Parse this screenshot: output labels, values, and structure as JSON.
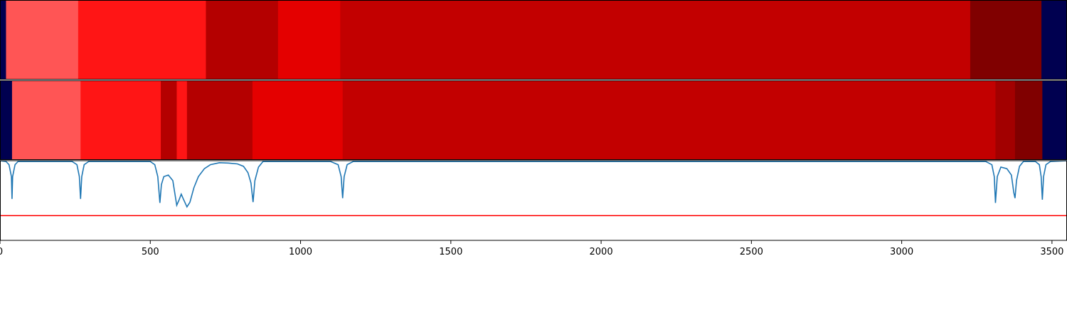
{
  "chart_data": {
    "type": "heatmap",
    "title": "",
    "xlabel": "",
    "ylabel": "",
    "xlim": [
      0,
      3550
    ],
    "x_ticks": [
      0,
      500,
      1000,
      1500,
      2000,
      2500,
      3000,
      3500
    ],
    "x_tick_labels": [
      "0",
      "500",
      "1000",
      "1500",
      "2000",
      "2500",
      "3000",
      "3500"
    ],
    "colors": {
      "background_band": "#000050",
      "level_1": "#ff5555",
      "level_2": "#ff1515",
      "level_3": "#e40000",
      "level_4": "#c20000",
      "level_5": "#b40000",
      "level_6": "#a20000",
      "level_7": "#800000",
      "line": "#1f77b4",
      "threshold": "#ff0000"
    },
    "tracks": [
      {
        "segments": [
          {
            "start": 0,
            "end": 20,
            "color": "background_band"
          },
          {
            "start": 20,
            "end": 260,
            "color": "level_1"
          },
          {
            "start": 260,
            "end": 685,
            "color": "level_2"
          },
          {
            "start": 685,
            "end": 925,
            "color": "level_5"
          },
          {
            "start": 925,
            "end": 1132,
            "color": "level_3"
          },
          {
            "start": 1132,
            "end": 3228,
            "color": "level_4"
          },
          {
            "start": 3228,
            "end": 3465,
            "color": "level_7"
          },
          {
            "start": 3465,
            "end": 3550,
            "color": "background_band"
          }
        ]
      },
      {
        "segments": [
          {
            "start": 0,
            "end": 40,
            "color": "background_band"
          },
          {
            "start": 40,
            "end": 268,
            "color": "level_1"
          },
          {
            "start": 268,
            "end": 535,
            "color": "level_2"
          },
          {
            "start": 535,
            "end": 588,
            "color": "level_5"
          },
          {
            "start": 588,
            "end": 622,
            "color": "level_2"
          },
          {
            "start": 622,
            "end": 840,
            "color": "level_5"
          },
          {
            "start": 840,
            "end": 1140,
            "color": "level_3"
          },
          {
            "start": 1140,
            "end": 3312,
            "color": "level_4"
          },
          {
            "start": 3312,
            "end": 3377,
            "color": "level_6"
          },
          {
            "start": 3377,
            "end": 3468,
            "color": "level_7"
          },
          {
            "start": 3468,
            "end": 3550,
            "color": "background_band"
          }
        ]
      }
    ],
    "line_series": {
      "ylim": [
        0,
        1
      ],
      "points": [
        [
          0,
          1.0
        ],
        [
          20,
          0.99
        ],
        [
          30,
          0.95
        ],
        [
          38,
          0.8
        ],
        [
          40,
          0.52
        ],
        [
          42,
          0.8
        ],
        [
          50,
          0.95
        ],
        [
          60,
          0.99
        ],
        [
          240,
          0.99
        ],
        [
          256,
          0.95
        ],
        [
          264,
          0.8
        ],
        [
          268,
          0.52
        ],
        [
          272,
          0.8
        ],
        [
          280,
          0.95
        ],
        [
          295,
          0.99
        ],
        [
          500,
          0.99
        ],
        [
          515,
          0.95
        ],
        [
          525,
          0.8
        ],
        [
          532,
          0.47
        ],
        [
          537,
          0.7
        ],
        [
          545,
          0.8
        ],
        [
          560,
          0.82
        ],
        [
          575,
          0.75
        ],
        [
          588,
          0.44
        ],
        [
          595,
          0.5
        ],
        [
          603,
          0.58
        ],
        [
          610,
          0.52
        ],
        [
          622,
          0.42
        ],
        [
          632,
          0.48
        ],
        [
          645,
          0.66
        ],
        [
          660,
          0.8
        ],
        [
          680,
          0.9
        ],
        [
          700,
          0.95
        ],
        [
          730,
          0.975
        ],
        [
          760,
          0.97
        ],
        [
          790,
          0.96
        ],
        [
          810,
          0.93
        ],
        [
          825,
          0.85
        ],
        [
          835,
          0.72
        ],
        [
          842,
          0.48
        ],
        [
          848,
          0.75
        ],
        [
          860,
          0.92
        ],
        [
          875,
          0.99
        ],
        [
          1100,
          0.99
        ],
        [
          1125,
          0.95
        ],
        [
          1135,
          0.8
        ],
        [
          1140,
          0.53
        ],
        [
          1145,
          0.8
        ],
        [
          1155,
          0.95
        ],
        [
          1175,
          0.99
        ],
        [
          3280,
          0.99
        ],
        [
          3300,
          0.95
        ],
        [
          3308,
          0.8
        ],
        [
          3312,
          0.47
        ],
        [
          3318,
          0.8
        ],
        [
          3330,
          0.92
        ],
        [
          3350,
          0.9
        ],
        [
          3365,
          0.82
        ],
        [
          3373,
          0.6
        ],
        [
          3377,
          0.53
        ],
        [
          3382,
          0.75
        ],
        [
          3392,
          0.93
        ],
        [
          3405,
          0.99
        ],
        [
          3445,
          0.99
        ],
        [
          3458,
          0.95
        ],
        [
          3464,
          0.8
        ],
        [
          3468,
          0.51
        ],
        [
          3472,
          0.8
        ],
        [
          3480,
          0.95
        ],
        [
          3495,
          0.99
        ],
        [
          3550,
          1.0
        ]
      ],
      "threshold": 0.31
    }
  }
}
